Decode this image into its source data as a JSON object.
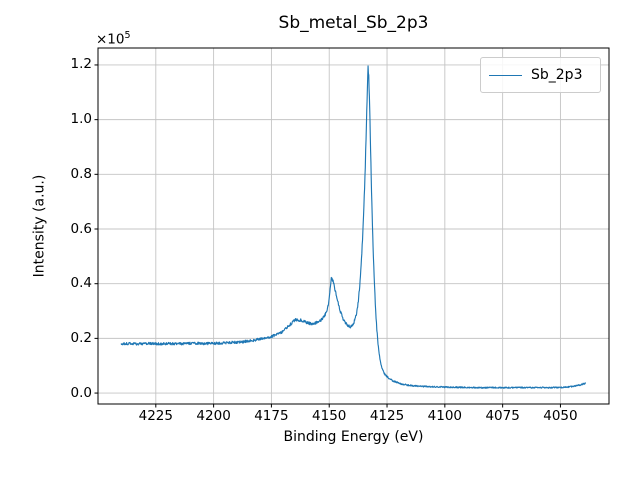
{
  "colors": {
    "line": "#1f77b4",
    "grid": "#c4c4c4",
    "spine": "#000000",
    "background": "#ffffff",
    "legend_border": "#cccccc"
  },
  "chart_data": {
    "type": "line",
    "title": "Sb_metal_Sb_2p3",
    "xlabel": "Binding Energy (eV)",
    "ylabel": "Intensity (a.u.)",
    "y_offset_text": {
      "base": "×10",
      "exp": "5"
    },
    "y_unit_multiplier": 100000,
    "x_inverted": true,
    "grid": true,
    "xlim": [
      4250,
      4029
    ],
    "ylim": [
      -0.04,
      1.262
    ],
    "xticks": [
      4225,
      4200,
      4175,
      4150,
      4125,
      4100,
      4075,
      4050
    ],
    "yticks": [
      0.0,
      0.2,
      0.4,
      0.6,
      0.8,
      1.0,
      1.2
    ],
    "legend": {
      "position": "upper right",
      "entries": [
        {
          "label": "Sb_2p3",
          "color": "#1f77b4"
        }
      ]
    },
    "series": [
      {
        "name": "Sb_2p3",
        "color": "#1f77b4",
        "x_range": [
          4240,
          4039
        ],
        "step_ev": 0.15,
        "noise": {
          "seed": 20,
          "base": 0.0012,
          "scale": 0.008
        },
        "keypoints": [
          [
            4240,
            0.179
          ],
          [
            4236,
            0.181
          ],
          [
            4232,
            0.18
          ],
          [
            4228,
            0.181
          ],
          [
            4224,
            0.18
          ],
          [
            4220,
            0.181
          ],
          [
            4216,
            0.18
          ],
          [
            4212,
            0.181
          ],
          [
            4208,
            0.182
          ],
          [
            4204,
            0.181
          ],
          [
            4200,
            0.182
          ],
          [
            4196,
            0.183
          ],
          [
            4192,
            0.185
          ],
          [
            4188,
            0.187
          ],
          [
            4184,
            0.191
          ],
          [
            4180,
            0.197
          ],
          [
            4176,
            0.205
          ],
          [
            4173,
            0.212
          ],
          [
            4170,
            0.226
          ],
          [
            4168,
            0.241
          ],
          [
            4166,
            0.258
          ],
          [
            4165,
            0.266
          ],
          [
            4164,
            0.268
          ],
          [
            4162,
            0.266
          ],
          [
            4160,
            0.259
          ],
          [
            4158,
            0.254
          ],
          [
            4156,
            0.256
          ],
          [
            4154,
            0.264
          ],
          [
            4152,
            0.282
          ],
          [
            4151,
            0.3
          ],
          [
            4150.3,
            0.33
          ],
          [
            4149.6,
            0.385
          ],
          [
            4149.1,
            0.42
          ],
          [
            4148.6,
            0.415
          ],
          [
            4148,
            0.397
          ],
          [
            4147,
            0.362
          ],
          [
            4146,
            0.323
          ],
          [
            4145,
            0.293
          ],
          [
            4144,
            0.271
          ],
          [
            4143,
            0.257
          ],
          [
            4142,
            0.247
          ],
          [
            4141,
            0.242
          ],
          [
            4140.2,
            0.245
          ],
          [
            4139.4,
            0.256
          ],
          [
            4138.7,
            0.274
          ],
          [
            4138,
            0.3
          ],
          [
            4137.4,
            0.338
          ],
          [
            4136.8,
            0.392
          ],
          [
            4136.2,
            0.465
          ],
          [
            4135.6,
            0.56
          ],
          [
            4135,
            0.68
          ],
          [
            4134.4,
            0.83
          ],
          [
            4133.9,
            0.99
          ],
          [
            4133.5,
            1.12
          ],
          [
            4133.2,
            1.195
          ],
          [
            4132.9,
            1.16
          ],
          [
            4132.5,
            1.04
          ],
          [
            4132.1,
            0.89
          ],
          [
            4131.7,
            0.74
          ],
          [
            4131.3,
            0.61
          ],
          [
            4130.9,
            0.5
          ],
          [
            4130.4,
            0.39
          ],
          [
            4129.9,
            0.3
          ],
          [
            4129.4,
            0.232
          ],
          [
            4128.9,
            0.18
          ],
          [
            4128.4,
            0.143
          ],
          [
            4127.9,
            0.117
          ],
          [
            4127.3,
            0.096
          ],
          [
            4126.7,
            0.081
          ],
          [
            4126,
            0.07
          ],
          [
            4125,
            0.06
          ],
          [
            4124,
            0.053
          ],
          [
            4122.5,
            0.045
          ],
          [
            4121,
            0.04
          ],
          [
            4119.5,
            0.035
          ],
          [
            4118,
            0.032
          ],
          [
            4116,
            0.029
          ],
          [
            4114,
            0.027
          ],
          [
            4111,
            0.025
          ],
          [
            4108,
            0.024
          ],
          [
            4105,
            0.023
          ],
          [
            4101,
            0.022
          ],
          [
            4097,
            0.021
          ],
          [
            4092,
            0.021
          ],
          [
            4087,
            0.02
          ],
          [
            4082,
            0.02
          ],
          [
            4077,
            0.02
          ],
          [
            4072,
            0.02
          ],
          [
            4067,
            0.02
          ],
          [
            4062,
            0.02
          ],
          [
            4058,
            0.02
          ],
          [
            4054,
            0.02
          ],
          [
            4050,
            0.021
          ],
          [
            4047,
            0.022
          ],
          [
            4045,
            0.024
          ],
          [
            4043,
            0.027
          ],
          [
            4041,
            0.031
          ],
          [
            4039.5,
            0.035
          ],
          [
            4039,
            0.036
          ]
        ]
      }
    ]
  }
}
